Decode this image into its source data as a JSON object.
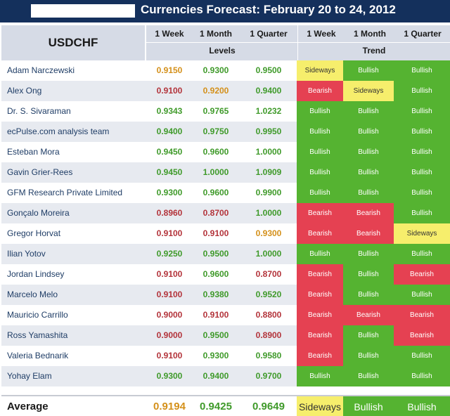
{
  "title": "Currencies Forecast: February 20 to 24, 2012",
  "symbol": "USDCHF",
  "columns": [
    "1 Week",
    "1 Month",
    "1 Quarter"
  ],
  "group_levels": "Levels",
  "group_trend": "Trend",
  "colors": {
    "header_bg": "#14305c",
    "bullish": "#55b331",
    "bearish": "#e54152",
    "sideways": "#f6ee6c",
    "level_green": "#3f9a2a",
    "level_red": "#b3333a",
    "level_orange": "#d4901a"
  },
  "rows": [
    {
      "name": "Adam Narczewski",
      "levels": [
        "0.9150",
        "0.9300",
        "0.9500"
      ],
      "level_colors": [
        "orange",
        "green",
        "green"
      ],
      "trends": [
        "Sideways",
        "Bullish",
        "Bullish"
      ]
    },
    {
      "name": "Alex Ong",
      "levels": [
        "0.9100",
        "0.9200",
        "0.9400"
      ],
      "level_colors": [
        "red",
        "orange",
        "green"
      ],
      "trends": [
        "Bearish",
        "Sideways",
        "Bullish"
      ]
    },
    {
      "name": "Dr. S. Sivaraman",
      "levels": [
        "0.9343",
        "0.9765",
        "1.0232"
      ],
      "level_colors": [
        "green",
        "green",
        "green"
      ],
      "trends": [
        "Bullish",
        "Bullish",
        "Bullish"
      ]
    },
    {
      "name": "ecPulse.com analysis team",
      "levels": [
        "0.9400",
        "0.9750",
        "0.9950"
      ],
      "level_colors": [
        "green",
        "green",
        "green"
      ],
      "trends": [
        "Bullish",
        "Bullish",
        "Bullish"
      ]
    },
    {
      "name": "Esteban Mora",
      "levels": [
        "0.9450",
        "0.9600",
        "1.0000"
      ],
      "level_colors": [
        "green",
        "green",
        "green"
      ],
      "trends": [
        "Bullish",
        "Bullish",
        "Bullish"
      ]
    },
    {
      "name": "Gavin Grier-Rees",
      "levels": [
        "0.9450",
        "1.0000",
        "1.0909"
      ],
      "level_colors": [
        "green",
        "green",
        "green"
      ],
      "trends": [
        "Bullish",
        "Bullish",
        "Bullish"
      ]
    },
    {
      "name": "GFM Research Private Limited",
      "levels": [
        "0.9300",
        "0.9600",
        "0.9900"
      ],
      "level_colors": [
        "green",
        "green",
        "green"
      ],
      "trends": [
        "Bullish",
        "Bullish",
        "Bullish"
      ]
    },
    {
      "name": "Gonçalo Moreira",
      "levels": [
        "0.8960",
        "0.8700",
        "1.0000"
      ],
      "level_colors": [
        "red",
        "red",
        "green"
      ],
      "trends": [
        "Bearish",
        "Bearish",
        "Bullish"
      ]
    },
    {
      "name": "Gregor Horvat",
      "levels": [
        "0.9100",
        "0.9100",
        "0.9300"
      ],
      "level_colors": [
        "red",
        "red",
        "orange"
      ],
      "trends": [
        "Bearish",
        "Bearish",
        "Sideways"
      ]
    },
    {
      "name": "Ilian Yotov",
      "levels": [
        "0.9250",
        "0.9500",
        "1.0000"
      ],
      "level_colors": [
        "green",
        "green",
        "green"
      ],
      "trends": [
        "Bullish",
        "Bullish",
        "Bullish"
      ]
    },
    {
      "name": "Jordan Lindsey",
      "levels": [
        "0.9100",
        "0.9600",
        "0.8700"
      ],
      "level_colors": [
        "red",
        "green",
        "red"
      ],
      "trends": [
        "Bearish",
        "Bullish",
        "Bearish"
      ]
    },
    {
      "name": "Marcelo Melo",
      "levels": [
        "0.9100",
        "0.9380",
        "0.9520"
      ],
      "level_colors": [
        "red",
        "green",
        "green"
      ],
      "trends": [
        "Bearish",
        "Bullish",
        "Bullish"
      ]
    },
    {
      "name": "Mauricio Carrillo",
      "levels": [
        "0.9000",
        "0.9100",
        "0.8800"
      ],
      "level_colors": [
        "red",
        "red",
        "red"
      ],
      "trends": [
        "Bearish",
        "Bearish",
        "Bearish"
      ]
    },
    {
      "name": "Ross Yamashita",
      "levels": [
        "0.9000",
        "0.9500",
        "0.8900"
      ],
      "level_colors": [
        "red",
        "green",
        "red"
      ],
      "trends": [
        "Bearish",
        "Bullish",
        "Bearish"
      ]
    },
    {
      "name": "Valeria Bednarik",
      "levels": [
        "0.9100",
        "0.9300",
        "0.9580"
      ],
      "level_colors": [
        "red",
        "green",
        "green"
      ],
      "trends": [
        "Bearish",
        "Bullish",
        "Bullish"
      ]
    },
    {
      "name": "Yohay Elam",
      "levels": [
        "0.9300",
        "0.9400",
        "0.9700"
      ],
      "level_colors": [
        "green",
        "green",
        "green"
      ],
      "trends": [
        "Bullish",
        "Bullish",
        "Bullish"
      ]
    }
  ],
  "average": {
    "label": "Average",
    "levels": [
      "0.9194",
      "0.9425",
      "0.9649"
    ],
    "level_colors": [
      "orange",
      "green",
      "green"
    ],
    "trends": [
      "Sideways",
      "Bullish",
      "Bullish"
    ]
  }
}
